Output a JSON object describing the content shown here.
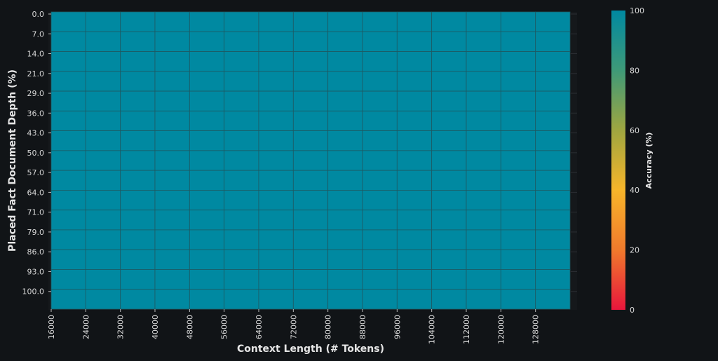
{
  "chart_data": {
    "type": "heatmap",
    "title": "",
    "xlabel": "Context Length (# Tokens)",
    "ylabel": "Placed Fact Document Depth (%)",
    "x_categories": [
      "16000",
      "24000",
      "32000",
      "40000",
      "48000",
      "56000",
      "64000",
      "72000",
      "80000",
      "88000",
      "96000",
      "104000",
      "112000",
      "120000",
      "128000"
    ],
    "y_categories": [
      "0.0",
      "7.0",
      "14.0",
      "21.0",
      "29.0",
      "36.0",
      "43.0",
      "50.0",
      "57.0",
      "64.0",
      "71.0",
      "79.0",
      "86.0",
      "93.0",
      "100.0"
    ],
    "values_note_all": 100,
    "values": [
      [
        100,
        100,
        100,
        100,
        100,
        100,
        100,
        100,
        100,
        100,
        100,
        100,
        100,
        100,
        100
      ],
      [
        100,
        100,
        100,
        100,
        100,
        100,
        100,
        100,
        100,
        100,
        100,
        100,
        100,
        100,
        100
      ],
      [
        100,
        100,
        100,
        100,
        100,
        100,
        100,
        100,
        100,
        100,
        100,
        100,
        100,
        100,
        100
      ],
      [
        100,
        100,
        100,
        100,
        100,
        100,
        100,
        100,
        100,
        100,
        100,
        100,
        100,
        100,
        100
      ],
      [
        100,
        100,
        100,
        100,
        100,
        100,
        100,
        100,
        100,
        100,
        100,
        100,
        100,
        100,
        100
      ],
      [
        100,
        100,
        100,
        100,
        100,
        100,
        100,
        100,
        100,
        100,
        100,
        100,
        100,
        100,
        100
      ],
      [
        100,
        100,
        100,
        100,
        100,
        100,
        100,
        100,
        100,
        100,
        100,
        100,
        100,
        100,
        100
      ],
      [
        100,
        100,
        100,
        100,
        100,
        100,
        100,
        100,
        100,
        100,
        100,
        100,
        100,
        100,
        100
      ],
      [
        100,
        100,
        100,
        100,
        100,
        100,
        100,
        100,
        100,
        100,
        100,
        100,
        100,
        100,
        100
      ],
      [
        100,
        100,
        100,
        100,
        100,
        100,
        100,
        100,
        100,
        100,
        100,
        100,
        100,
        100,
        100
      ],
      [
        100,
        100,
        100,
        100,
        100,
        100,
        100,
        100,
        100,
        100,
        100,
        100,
        100,
        100,
        100
      ],
      [
        100,
        100,
        100,
        100,
        100,
        100,
        100,
        100,
        100,
        100,
        100,
        100,
        100,
        100,
        100
      ],
      [
        100,
        100,
        100,
        100,
        100,
        100,
        100,
        100,
        100,
        100,
        100,
        100,
        100,
        100,
        100
      ],
      [
        100,
        100,
        100,
        100,
        100,
        100,
        100,
        100,
        100,
        100,
        100,
        100,
        100,
        100,
        100
      ],
      [
        100,
        100,
        100,
        100,
        100,
        100,
        100,
        100,
        100,
        100,
        100,
        100,
        100,
        100,
        100
      ]
    ],
    "colorbar": {
      "label": "Accuracy (%)",
      "range": [
        0,
        100
      ],
      "ticks": [
        "0",
        "20",
        "40",
        "60",
        "80",
        "100"
      ],
      "colors": [
        "#e8163c",
        "#f07a2c",
        "#f7b52a",
        "#9fa640",
        "#3f9a78",
        "#0089a1"
      ]
    },
    "grid": false
  }
}
